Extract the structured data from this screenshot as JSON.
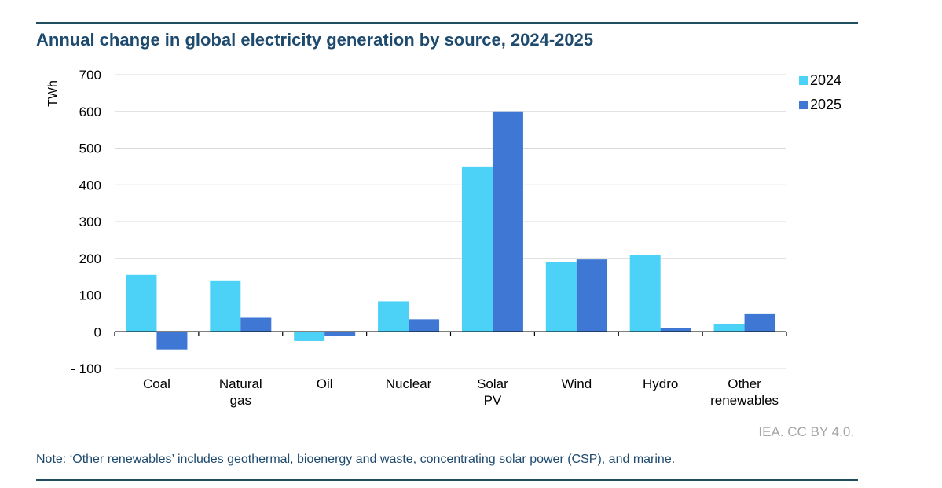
{
  "title": "Annual change in global electricity generation by source, 2024-2025",
  "credit": "IEA. CC BY 4.0.",
  "note": "Note: ‘Other renewables’ includes geothermal, bioenergy and waste, concentrating solar power (CSP), and marine.",
  "colors": {
    "series_2024": "#4dd2f7",
    "series_2025": "#3f77d4",
    "title": "#1e4a6e",
    "gridline": "#d9d9d9",
    "axis": "#000000",
    "rule": "#1f4e5f"
  },
  "chart_data": {
    "type": "bar",
    "title": "Annual change in global electricity generation by source, 2024-2025",
    "ylabel": "TWh",
    "xlabel": "",
    "ylim": [
      -100,
      700
    ],
    "yticks": [
      -100,
      0,
      100,
      200,
      300,
      400,
      500,
      600,
      700
    ],
    "ytick_labels": [
      "- 100",
      "0",
      "100",
      "200",
      "300",
      "400",
      "500",
      "600",
      "700"
    ],
    "grid": true,
    "legend_position": "top-right",
    "categories": [
      [
        "Coal"
      ],
      [
        "Natural",
        "gas"
      ],
      [
        "Oil"
      ],
      [
        "Nuclear"
      ],
      [
        "Solar",
        "PV"
      ],
      [
        "Wind"
      ],
      [
        "Hydro"
      ],
      [
        "Other",
        "renewables"
      ]
    ],
    "series": [
      {
        "name": "2024",
        "values": [
          155,
          140,
          -25,
          83,
          450,
          190,
          210,
          22
        ]
      },
      {
        "name": "2025",
        "values": [
          -48,
          38,
          -12,
          34,
          600,
          197,
          10,
          50
        ]
      }
    ]
  }
}
